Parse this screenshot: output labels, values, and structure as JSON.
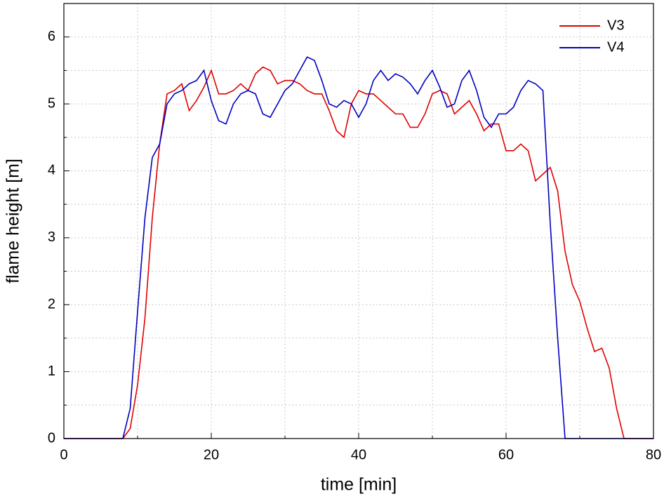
{
  "chart_data": {
    "type": "line",
    "xlabel": "time [min]",
    "ylabel": "flame height [m]",
    "x": [
      0,
      1,
      2,
      3,
      4,
      5,
      6,
      7,
      8,
      9,
      10,
      11,
      12,
      13,
      14,
      15,
      16,
      17,
      18,
      19,
      20,
      21,
      22,
      23,
      24,
      25,
      26,
      27,
      28,
      29,
      30,
      31,
      32,
      33,
      34,
      35,
      36,
      37,
      38,
      39,
      40,
      41,
      42,
      43,
      44,
      45,
      46,
      47,
      48,
      49,
      50,
      51,
      52,
      53,
      54,
      55,
      56,
      57,
      58,
      59,
      60,
      61,
      62,
      63,
      64,
      65,
      66,
      67,
      68,
      69,
      70,
      71,
      72,
      73,
      74,
      75,
      76,
      77,
      78,
      79,
      80
    ],
    "series": [
      {
        "name": "V3",
        "color": "#e00000",
        "values": [
          0,
          0,
          0,
          0,
          0,
          0,
          0,
          0,
          0,
          0.15,
          0.8,
          1.8,
          3.3,
          4.4,
          5.15,
          5.2,
          5.3,
          4.9,
          5.05,
          5.25,
          5.5,
          5.15,
          5.15,
          5.2,
          5.3,
          5.2,
          5.45,
          5.55,
          5.5,
          5.3,
          5.35,
          5.35,
          5.3,
          5.2,
          5.15,
          5.15,
          4.9,
          4.6,
          4.5,
          5.0,
          5.2,
          5.15,
          5.15,
          5.05,
          4.95,
          4.85,
          4.85,
          4.65,
          4.65,
          4.85,
          5.15,
          5.2,
          5.15,
          4.85,
          4.95,
          5.05,
          4.85,
          4.6,
          4.7,
          4.7,
          4.3,
          4.3,
          4.4,
          4.3,
          3.85,
          3.95,
          4.05,
          3.7,
          2.8,
          2.3,
          2.05,
          1.65,
          1.3,
          1.35,
          1.05,
          0.45,
          0,
          0,
          0,
          0,
          0
        ]
      },
      {
        "name": "V4",
        "color": "#0000c0",
        "values": [
          0,
          0,
          0,
          0,
          0,
          0,
          0,
          0,
          0,
          0.45,
          1.9,
          3.3,
          4.2,
          4.4,
          5.0,
          5.15,
          5.2,
          5.3,
          5.35,
          5.5,
          5.05,
          4.75,
          4.7,
          5.0,
          5.15,
          5.2,
          5.15,
          4.85,
          4.8,
          5.0,
          5.2,
          5.3,
          5.5,
          5.7,
          5.65,
          5.35,
          5.0,
          4.95,
          5.05,
          5.0,
          4.8,
          5.0,
          5.35,
          5.5,
          5.35,
          5.45,
          5.4,
          5.3,
          5.15,
          5.35,
          5.5,
          5.25,
          4.95,
          5.0,
          5.35,
          5.5,
          5.2,
          4.8,
          4.65,
          4.85,
          4.85,
          4.95,
          5.2,
          5.35,
          5.3,
          5.2,
          3.2,
          1.5,
          0,
          0,
          0,
          0,
          0,
          0,
          0,
          0,
          0,
          0,
          0,
          0,
          0
        ]
      }
    ],
    "xlim": [
      0,
      80
    ],
    "xticks": [
      0,
      20,
      40,
      60,
      80
    ],
    "xminorticks": [
      10,
      30,
      50,
      70
    ],
    "ylim": [
      0,
      6.5
    ],
    "yticks": [
      0,
      1,
      2,
      3,
      4,
      5,
      6
    ],
    "yminorticks": [
      0.5,
      1.5,
      2.5,
      3.5,
      4.5,
      5.5,
      6.5
    ],
    "grid": true,
    "legend": "upper right"
  }
}
